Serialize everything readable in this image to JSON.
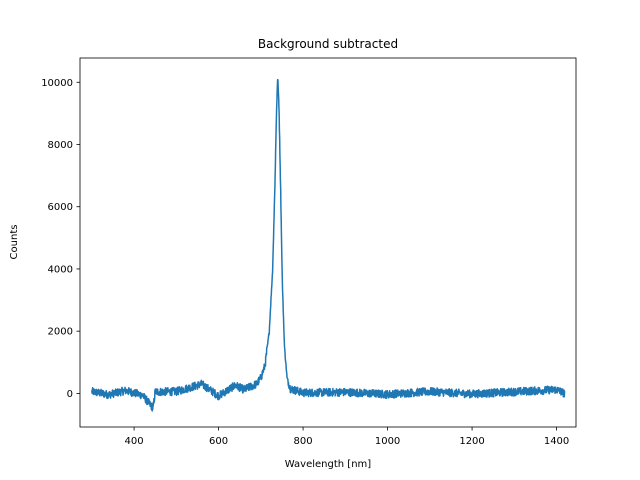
{
  "chart_data": {
    "type": "line",
    "title": "Background subtracted",
    "xlabel": "Wavelength [nm]",
    "ylabel": "Counts",
    "xlim": [
      272,
      1446
    ],
    "ylim": [
      -1080,
      10780
    ],
    "xticks": [
      400,
      600,
      800,
      1000,
      1200,
      1400
    ],
    "yticks": [
      0,
      2000,
      4000,
      6000,
      8000,
      10000
    ],
    "grid": false,
    "line_color": "#1f77b4",
    "series": [
      {
        "peak_center_nm": 740,
        "peak_height": 10200,
        "x_range": [
          300,
          1419
        ],
        "points": [
          [
            300,
            60
          ],
          [
            340,
            -40
          ],
          [
            380,
            90
          ],
          [
            420,
            -60
          ],
          [
            445,
            -480
          ],
          [
            450,
            50
          ],
          [
            500,
            60
          ],
          [
            560,
            300
          ],
          [
            600,
            -80
          ],
          [
            640,
            260
          ],
          [
            660,
            120
          ],
          [
            690,
            300
          ],
          [
            700,
            500
          ],
          [
            710,
            900
          ],
          [
            720,
            2000
          ],
          [
            728,
            4000
          ],
          [
            733,
            6500
          ],
          [
            737,
            9000
          ],
          [
            740,
            10200
          ],
          [
            743,
            9200
          ],
          [
            747,
            6500
          ],
          [
            751,
            3500
          ],
          [
            756,
            1500
          ],
          [
            762,
            500
          ],
          [
            770,
            150
          ],
          [
            800,
            20
          ],
          [
            900,
            40
          ],
          [
            1000,
            -30
          ],
          [
            1100,
            60
          ],
          [
            1200,
            -20
          ],
          [
            1300,
            50
          ],
          [
            1400,
            120
          ],
          [
            1419,
            0
          ]
        ]
      }
    ]
  }
}
